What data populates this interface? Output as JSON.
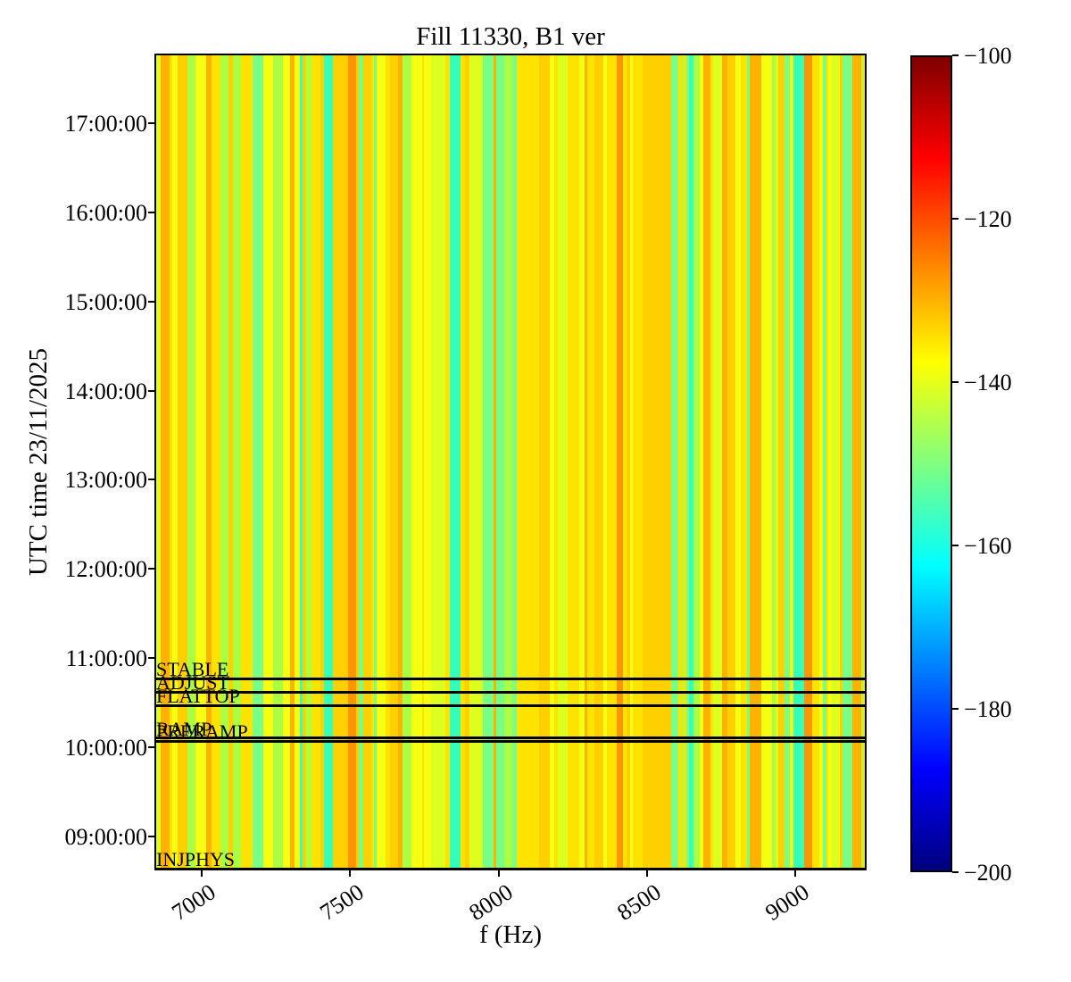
{
  "chart_data": {
    "type": "heatmap",
    "title": "Fill 11330, B1 ver",
    "xlabel": "f (Hz)",
    "ylabel": "UTC time 23/11/2025",
    "x_range": [
      6840,
      9240
    ],
    "x_ticks": [
      {
        "value": 7000,
        "label": "7000"
      },
      {
        "value": 7500,
        "label": "7500"
      },
      {
        "value": 8000,
        "label": "8000"
      },
      {
        "value": 8500,
        "label": "8500"
      },
      {
        "value": 9000,
        "label": "9000"
      }
    ],
    "time_start": "08:37:00",
    "time_end": "17:47:00",
    "y_ticks": [
      "17:00:00",
      "16:00:00",
      "15:00:00",
      "14:00:00",
      "13:00:00",
      "12:00:00",
      "11:00:00",
      "10:00:00",
      "09:00:00"
    ],
    "colorbar": {
      "colormap": "jet",
      "min": -200,
      "max": -100,
      "ticks": [
        {
          "value": -100,
          "label": "−100"
        },
        {
          "value": -120,
          "label": "−120"
        },
        {
          "value": -140,
          "label": "−140"
        },
        {
          "value": -160,
          "label": "−160"
        },
        {
          "value": -180,
          "label": "−180"
        },
        {
          "value": -200,
          "label": "−200"
        }
      ],
      "gradient_stops": [
        {
          "pos": 0.0,
          "color": "#00007f"
        },
        {
          "pos": 0.125,
          "color": "#0000ff"
        },
        {
          "pos": 0.375,
          "color": "#00ffff"
        },
        {
          "pos": 0.625,
          "color": "#ffff00"
        },
        {
          "pos": 0.875,
          "color": "#ff0000"
        },
        {
          "pos": 1.0,
          "color": "#7f0000"
        }
      ]
    },
    "beam_modes": [
      {
        "label": "STABLE",
        "time": "10:46:00"
      },
      {
        "label": "ADJUST",
        "time": "10:37:00"
      },
      {
        "label": "FLATTOP",
        "time": "10:28:00"
      },
      {
        "label": "RAMP",
        "time": "10:06:00"
      },
      {
        "label": "PRERAMP",
        "time": "10:04:00"
      },
      {
        "label": "INJPHYS",
        "time": "08:38:00"
      }
    ],
    "spectrum": {
      "description": "vertical frequency stripes, constant over time",
      "background": "#ffe400",
      "palette": [
        {
          "color": "#ffe300",
          "value_dB": -137,
          "weight": 0.26
        },
        {
          "color": "#f6ff12",
          "value_dB": -139,
          "weight": 0.15
        },
        {
          "color": "#ffd000",
          "value_dB": -132,
          "weight": 0.16
        },
        {
          "color": "#ffb300",
          "value_dB": -128,
          "weight": 0.09
        },
        {
          "color": "#ff9500",
          "value_dB": -125,
          "weight": 0.03
        },
        {
          "color": "#ddff20",
          "value_dB": -141,
          "weight": 0.13
        },
        {
          "color": "#aaff44",
          "value_dB": -146,
          "weight": 0.1
        },
        {
          "color": "#77ff88",
          "value_dB": -151,
          "weight": 0.05
        },
        {
          "color": "#33ffbb",
          "value_dB": -158,
          "weight": 0.03
        }
      ],
      "stripe_seed": 11330
    }
  }
}
